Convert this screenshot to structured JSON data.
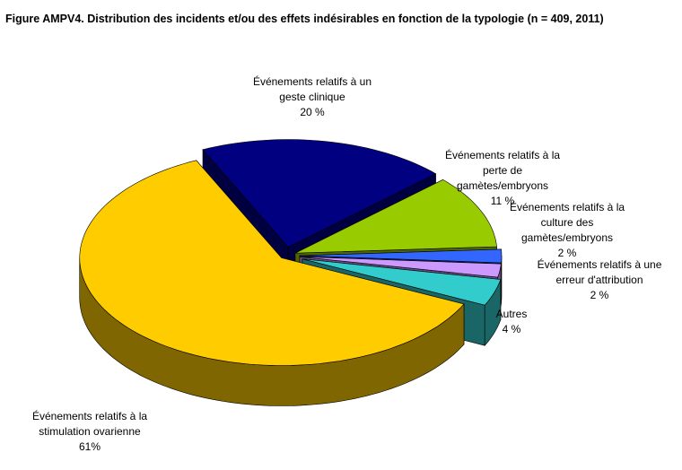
{
  "chart_data": {
    "type": "pie3d",
    "title": "Figure AMPV4. Distribution des incidents et/ou des effets indésirables en fonction de la typologie (n = 409, 2011)",
    "categories": [
      "Événements relatifs à un geste clinique",
      "Événements relatifs à la perte de gamètes/embryons",
      "Événements relatifs à la culture des gamètes/embryons",
      "Événements relatifs à une erreur d'attribution",
      "Autres",
      "Événements relatifs à la stimulation ovarienne"
    ],
    "values": [
      20,
      11,
      2,
      2,
      4,
      61
    ],
    "value_labels": [
      "20 %",
      "11 %",
      "2 %",
      "2 %",
      "4 %",
      "61%"
    ],
    "colors": [
      "#000080",
      "#99cc00",
      "#3366ff",
      "#cc99ff",
      "#33cccc",
      "#ffcc00"
    ]
  }
}
